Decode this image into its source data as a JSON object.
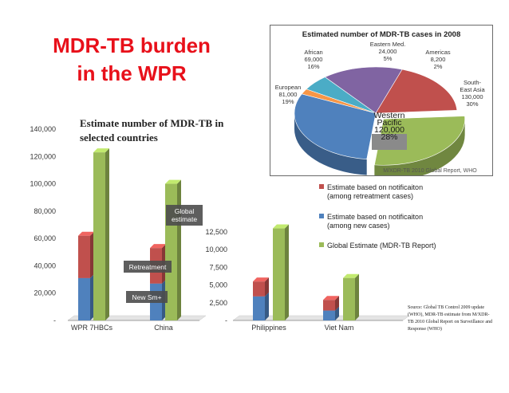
{
  "title": {
    "line1": "MDR-TB burden",
    "line2": "in the WPR"
  },
  "subtitle": "Estimate number of MDR-TB in selected countries",
  "source_note": "Source: Global TB Control 2009 update (WHO), MDR-TB estimate from M/XDR-TB 2010 Global Report on Surveillance and Response (WHO)",
  "colors": {
    "retreatment": "#c0504d",
    "new": "#4f81bd",
    "global": "#9bbb59",
    "title_red": "#e8101a"
  },
  "legend": [
    {
      "label_line1": "Estimate based on notificaiton",
      "label_line2": "(among retreatment cases)",
      "color": "#c0504d"
    },
    {
      "label_line1": "Estimate based on notificaiton",
      "label_line2": "(among new cases)",
      "color": "#4f81bd"
    },
    {
      "label_line1": "Global Estimate (MDR-TB Report)",
      "label_line2": "",
      "color": "#9bbb59"
    }
  ],
  "chart_data": [
    {
      "type": "bar",
      "stacked": true,
      "title": "Estimate number of MDR-TB in selected countries",
      "categories": [
        "WPR 7HBCs",
        "China"
      ],
      "yticks": [
        "-",
        "20,000",
        "40,000",
        "60,000",
        "80,000",
        "100,000",
        "120,000",
        "140,000"
      ],
      "ylim": [
        0,
        140000
      ],
      "series": [
        {
          "name": "Estimate based on notificaiton (among new cases)",
          "stack": "notification",
          "values": [
            31000,
            27000
          ]
        },
        {
          "name": "Estimate based on notificaiton (among retreatment cases)",
          "stack": "notification",
          "values": [
            31000,
            26000
          ]
        },
        {
          "name": "Global Estimate (MDR-TB Report)",
          "stack": "global",
          "values": [
            123000,
            100000
          ]
        }
      ],
      "annotations": {
        "new": "New Sm+",
        "retreatment": "Retreatment",
        "global": "Global estimate"
      }
    },
    {
      "type": "bar",
      "stacked": true,
      "categories": [
        "Philippines",
        "Viet Nam"
      ],
      "yticks": [
        "-",
        "2,500",
        "5,000",
        "7,500",
        "10,000",
        "12,500"
      ],
      "ylim": [
        0,
        12500
      ],
      "series": [
        {
          "name": "Estimate based on notificaiton (among new cases)",
          "stack": "notification",
          "values": [
            3400,
            1400
          ]
        },
        {
          "name": "Estimate based on notificaiton (among retreatment cases)",
          "stack": "notification",
          "values": [
            2100,
            1500
          ]
        },
        {
          "name": "Global Estimate (MDR-TB Report)",
          "stack": "global",
          "values": [
            13000,
            6000
          ]
        }
      ]
    },
    {
      "type": "pie",
      "title": "Estimated number of MDR-TB cases in 2008",
      "slices": [
        {
          "name": "Western Pacific",
          "value": 120000,
          "pct": "28%",
          "value_label": "120,000",
          "color": "#9bbb59"
        },
        {
          "name": "South-East Asia",
          "value": 130000,
          "pct": "30%",
          "value_label": "130,000",
          "color": "#4f81bd"
        },
        {
          "name": "Americas",
          "value": 8200,
          "pct": "2%",
          "value_label": "8,200",
          "color": "#f79646"
        },
        {
          "name": "Eastern Med.",
          "value": 24000,
          "pct": "5%",
          "value_label": "24,000",
          "color": "#4bacc6"
        },
        {
          "name": "African",
          "value": 69000,
          "pct": "16%",
          "value_label": "69,000",
          "color": "#8064a2"
        },
        {
          "name": "European",
          "value": 81000,
          "pct": "19%",
          "value_label": "81,000",
          "color": "#c0504d"
        }
      ],
      "labels": {
        "western_pacific": [
          "Western",
          "Pacific",
          "120,000",
          "28%"
        ],
        "south_east_asia": [
          "South-",
          "East Asia",
          "130,000",
          "30%"
        ],
        "americas": [
          "Americas",
          "8,200",
          "2%"
        ],
        "eastern_med": [
          "Eastern Med.",
          "24,000",
          "5%"
        ],
        "african": [
          "African",
          "69,000",
          "16%"
        ],
        "european": [
          "European",
          "81,000",
          "19%"
        ]
      },
      "credit": "M/XDR-TB 2010 Global Report, WHO"
    }
  ]
}
